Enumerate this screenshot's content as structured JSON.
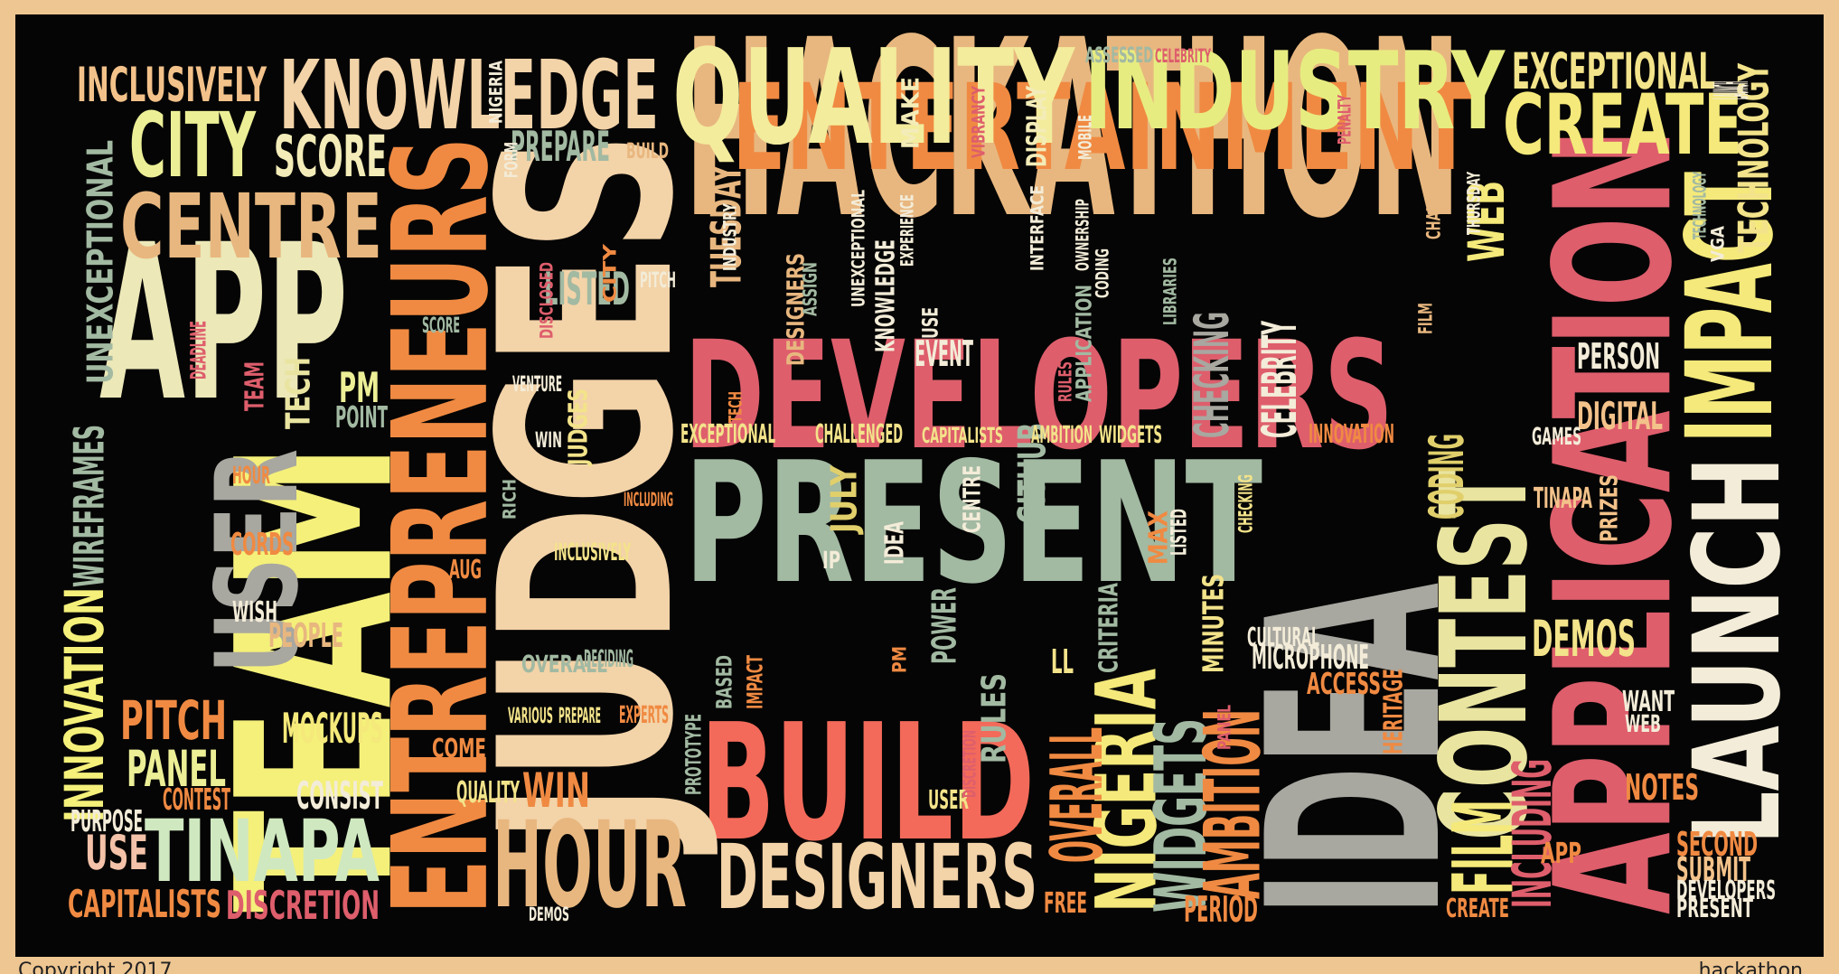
{
  "image": {
    "type": "word cloud",
    "background_color": "#050505",
    "frame_color": "#eec692",
    "palette": [
      "#e9e4a0",
      "#f4e97a",
      "#e8b77f",
      "#f08a42",
      "#de5e6c",
      "#a2b9a2",
      "#a8a7a0",
      "#f3d3a8",
      "#e0cf6b",
      "#f36a5a"
    ]
  },
  "footer": {
    "left_partial_text": "Copyright 2017",
    "right_partial_text": "hackathon"
  },
  "words": [
    {
      "text": "HACKATHON",
      "color": "#e8b77f"
    },
    {
      "text": "DEVELOPERS",
      "color": "#de5e6c"
    },
    {
      "text": "PRESENT",
      "color": "#a2b9a2"
    },
    {
      "text": "ENTERTAINMENT",
      "color": "#f08a42"
    },
    {
      "text": "QUALITY",
      "color": "#f3ec9c"
    },
    {
      "text": "INDUSTRY",
      "color": "#e7ec80"
    },
    {
      "text": "KNOWLEDGE",
      "color": "#f3d3a8"
    },
    {
      "text": "BUILD",
      "color": "#f36a5a"
    },
    {
      "text": "JUDGES",
      "color": "#f3d3a8"
    },
    {
      "text": "ENTREPRENEURS",
      "color": "#f08a42"
    },
    {
      "text": "TEAM",
      "color": "#f4f07a"
    },
    {
      "text": "APP",
      "color": "#ece8b8"
    },
    {
      "text": "USER",
      "color": "#a8a7a0"
    },
    {
      "text": "IDEA",
      "color": "#a8a7a0"
    },
    {
      "text": "CONTEST",
      "color": "#e9e4a0"
    },
    {
      "text": "APPLICATION",
      "color": "#de5e6c"
    },
    {
      "text": "LAUNCH",
      "color": "#f3ecd8"
    },
    {
      "text": "IMPACT",
      "color": "#f4e97a"
    },
    {
      "text": "CREATE",
      "color": "#f4e97a"
    },
    {
      "text": "EXCEPTIONAL",
      "color": "#f3e38a"
    },
    {
      "text": "CITY",
      "color": "#ecef96"
    },
    {
      "text": "CENTRE",
      "color": "#e8b77f"
    },
    {
      "text": "SCORE",
      "color": "#f3ecb8"
    },
    {
      "text": "INCLUSIVELY",
      "color": "#f3c28a"
    },
    {
      "text": "HOUR",
      "color": "#e8b77f"
    },
    {
      "text": "DESIGNERS",
      "color": "#f3d3a8"
    },
    {
      "text": "TINAPA",
      "color": "#cfe8c0"
    },
    {
      "text": "NIGERIA",
      "color": "#f4e97a"
    },
    {
      "text": "WIDGETS",
      "color": "#a2b9a2"
    },
    {
      "text": "OVERALL",
      "color": "#f08a42"
    },
    {
      "text": "AMBITION",
      "color": "#f08a42"
    },
    {
      "text": "FILM",
      "color": "#f4e97a"
    },
    {
      "text": "INCLUDING",
      "color": "#de5e6c"
    },
    {
      "text": "UNEXCEPTIONAL",
      "color": "#a2b9a2"
    },
    {
      "text": "INNOVATION",
      "color": "#f4f07a"
    },
    {
      "text": "WIREFRAMES",
      "color": "#a2b9a2"
    },
    {
      "text": "TECHNOLOGY",
      "color": "#f3e38a"
    },
    {
      "text": "WEB",
      "color": "#f4e97a"
    },
    {
      "text": "DEMOS",
      "color": "#f3e38a"
    },
    {
      "text": "DIGITAL",
      "color": "#f3c28a"
    },
    {
      "text": "PERSON",
      "color": "#f3ecd8"
    },
    {
      "text": "NOTES",
      "color": "#f08a42"
    },
    {
      "text": "PITCH",
      "color": "#f08a42"
    },
    {
      "text": "PANEL",
      "color": "#ecef96"
    },
    {
      "text": "MOCKUPS",
      "color": "#f4e97a"
    },
    {
      "text": "CONSIST",
      "color": "#f3ecd8"
    },
    {
      "text": "USE",
      "color": "#f3c2a8"
    },
    {
      "text": "CAPITALISTS",
      "color": "#f08a42"
    },
    {
      "text": "DISCRETION",
      "color": "#de5e6c"
    },
    {
      "text": "WIN",
      "color": "#f08a42"
    },
    {
      "text": "CODING",
      "color": "#e0cf6b"
    },
    {
      "text": "CHECKING",
      "color": "#a8a7a0"
    },
    {
      "text": "CELEBRITY",
      "color": "#f3ecd8"
    },
    {
      "text": "GITHUB",
      "color": "#a2b9a2"
    },
    {
      "text": "LISTED",
      "color": "#a2b9a2"
    },
    {
      "text": "PREPARE",
      "color": "#a2b9a2"
    },
    {
      "text": "MAKE",
      "color": "#f3ecb8"
    },
    {
      "text": "DISPLAY",
      "color": "#f3ecb8"
    },
    {
      "text": "TUESDAY",
      "color": "#e8b77f"
    },
    {
      "text": "KNOWLEDGE",
      "color": "#f3ecd8"
    },
    {
      "text": "EVENT",
      "color": "#f3ecd8"
    },
    {
      "text": "JULY",
      "color": "#e0cf6b"
    },
    {
      "text": "POWER",
      "color": "#a2b9a2"
    },
    {
      "text": "CRITERIA",
      "color": "#a2b9a2"
    },
    {
      "text": "MINUTES",
      "color": "#f3e38a"
    },
    {
      "text": "RULES",
      "color": "#a2b9a2"
    },
    {
      "text": "PM",
      "color": "#ecef96"
    },
    {
      "text": "POINT",
      "color": "#a2b9a2"
    },
    {
      "text": "TECH",
      "color": "#e9e4a0"
    },
    {
      "text": "PEOPLE",
      "color": "#e8b77f"
    },
    {
      "text": "CORDS",
      "color": "#f08a42"
    },
    {
      "text": "WISH",
      "color": "#f3ecd8"
    },
    {
      "text": "PURPOSE",
      "color": "#f3ecd8"
    },
    {
      "text": "CONTEST",
      "color": "#f08a42"
    },
    {
      "text": "QUALITY",
      "color": "#f3e38a"
    },
    {
      "text": "COME",
      "color": "#f08a42"
    },
    {
      "text": "MICROPHONE",
      "color": "#f3ecd8"
    },
    {
      "text": "ACCESS",
      "color": "#f08a42"
    },
    {
      "text": "CULTURAL",
      "color": "#f3ecd8"
    },
    {
      "text": "HERITAGE",
      "color": "#f08a42"
    },
    {
      "text": "PERIOD",
      "color": "#f08a42"
    },
    {
      "text": "FREE",
      "color": "#f08a42"
    },
    {
      "text": "SECOND",
      "color": "#f08a42"
    },
    {
      "text": "SUBMIT",
      "color": "#f3c28a"
    },
    {
      "text": "DEVELOPERS",
      "color": "#f3ecd8"
    },
    {
      "text": "PRESENT",
      "color": "#f3ecd8"
    },
    {
      "text": "APP",
      "color": "#f08a42"
    },
    {
      "text": "CREATE",
      "color": "#f08a42"
    },
    {
      "text": "WANT",
      "color": "#f3ecd8"
    },
    {
      "text": "WEB",
      "color": "#f3ecd8"
    },
    {
      "text": "TINAPA",
      "color": "#f3c28a"
    },
    {
      "text": "PRIZES",
      "color": "#f3c28a"
    },
    {
      "text": "GAMES",
      "color": "#f3ecd8"
    },
    {
      "text": "INNOVATION",
      "color": "#f08a42"
    },
    {
      "text": "EXCEPTIONAL",
      "color": "#f3e38a"
    },
    {
      "text": "CHALLENGED",
      "color": "#f3e38a"
    },
    {
      "text": "GITHUB",
      "color": "#f3e38a"
    },
    {
      "text": "CAPITALISTS",
      "color": "#f3e38a"
    },
    {
      "text": "AMBITION",
      "color": "#f3e38a"
    },
    {
      "text": "WIDGETS",
      "color": "#f3e38a"
    },
    {
      "text": "ASSESSED",
      "color": "#a2b9a2"
    },
    {
      "text": "CELEBRITY",
      "color": "#de5e6c"
    },
    {
      "text": "LAUNCH",
      "color": "#f3ecd8"
    },
    {
      "text": "SCORE",
      "color": "#a2b9a2"
    },
    {
      "text": "DEADLINE",
      "color": "#de5e6c"
    },
    {
      "text": "HOUR",
      "color": "#f08a42"
    },
    {
      "text": "AUG",
      "color": "#f08a42"
    },
    {
      "text": "INCLUSIVELY",
      "color": "#f3e38a"
    },
    {
      "text": "OVERALL",
      "color": "#a2b9a2"
    },
    {
      "text": "DECIDING",
      "color": "#a2b9a2"
    },
    {
      "text": "VARIOUS",
      "color": "#f3e38a"
    },
    {
      "text": "PREPARE",
      "color": "#f3e38a"
    },
    {
      "text": "EXPERTS",
      "color": "#f08a42"
    },
    {
      "text": "DEMOS",
      "color": "#f3ecd8"
    },
    {
      "text": "PROTOTYPE",
      "color": "#a2b9a2"
    },
    {
      "text": "BASED",
      "color": "#a2b9a2"
    },
    {
      "text": "IMPACT",
      "color": "#f08a42"
    },
    {
      "text": "USER",
      "color": "#f3e38a"
    },
    {
      "text": "DISCRETION",
      "color": "#de5e6c"
    },
    {
      "text": "VENTURE",
      "color": "#f3ecd8"
    },
    {
      "text": "WIN",
      "color": "#f3ecd8"
    },
    {
      "text": "JUDGES",
      "color": "#f3e38a"
    },
    {
      "text": "RICH",
      "color": "#a2b9a2"
    },
    {
      "text": "INCLUDING",
      "color": "#f08a42"
    },
    {
      "text": "TEAM",
      "color": "#de5e6c"
    },
    {
      "text": "IP",
      "color": "#f3ecd8"
    },
    {
      "text": "IDEA",
      "color": "#f3ecd8"
    },
    {
      "text": "CENTRE",
      "color": "#f3ecd8"
    },
    {
      "text": "MAX",
      "color": "#f08a42"
    },
    {
      "text": "LISTED",
      "color": "#f3ecd8"
    },
    {
      "text": "CHECKING",
      "color": "#f3e38a"
    },
    {
      "text": "LL",
      "color": "#f3e38a"
    },
    {
      "text": "PM",
      "color": "#f08a42"
    },
    {
      "text": "PANEL",
      "color": "#de5e6c"
    },
    {
      "text": "DISCLOSED",
      "color": "#de5e6c"
    },
    {
      "text": "CITY",
      "color": "#f08a42"
    },
    {
      "text": "PITCH",
      "color": "#f3ecd8"
    },
    {
      "text": "DESIGNERS",
      "color": "#e8b77f"
    },
    {
      "text": "ASSIGN",
      "color": "#a2b9a2"
    },
    {
      "text": "TECH",
      "color": "#f08a42"
    },
    {
      "text": "INDUSTRY",
      "color": "#f3ecd8"
    },
    {
      "text": "UNEXCEPTIONAL",
      "color": "#f3ecd8"
    },
    {
      "text": "EXPERIENCE",
      "color": "#f3ecd8"
    },
    {
      "text": "USE",
      "color": "#f3ecd8"
    },
    {
      "text": "INTERFACE",
      "color": "#f3ecd8"
    },
    {
      "text": "OWNERSHIP",
      "color": "#f3ecd8"
    },
    {
      "text": "CODING",
      "color": "#f3ecd8"
    },
    {
      "text": "APPLICATION",
      "color": "#a2b9a2"
    },
    {
      "text": "RULES",
      "color": "#de5e6c"
    },
    {
      "text": "LIBRARIES",
      "color": "#a2b9a2"
    },
    {
      "text": "VIBRANCY",
      "color": "#de5e6c"
    },
    {
      "text": "MOBILE",
      "color": "#f3ecd8"
    },
    {
      "text": "PENALTY",
      "color": "#de5e6c"
    },
    {
      "text": "FORM",
      "color": "#f3ecd8"
    },
    {
      "text": "NIGERIA",
      "color": "#f3ecd8"
    },
    {
      "text": "BUILD",
      "color": "#e8b77f"
    },
    {
      "text": "CHANCE",
      "color": "#e8b77f"
    },
    {
      "text": "FILM",
      "color": "#e8b77f"
    },
    {
      "text": "THURSDAY",
      "color": "#f3ecd8"
    },
    {
      "text": "TECHNOLOGY",
      "color": "#a2b9a2"
    },
    {
      "text": "VGA",
      "color": "#f3ecd8"
    }
  ]
}
